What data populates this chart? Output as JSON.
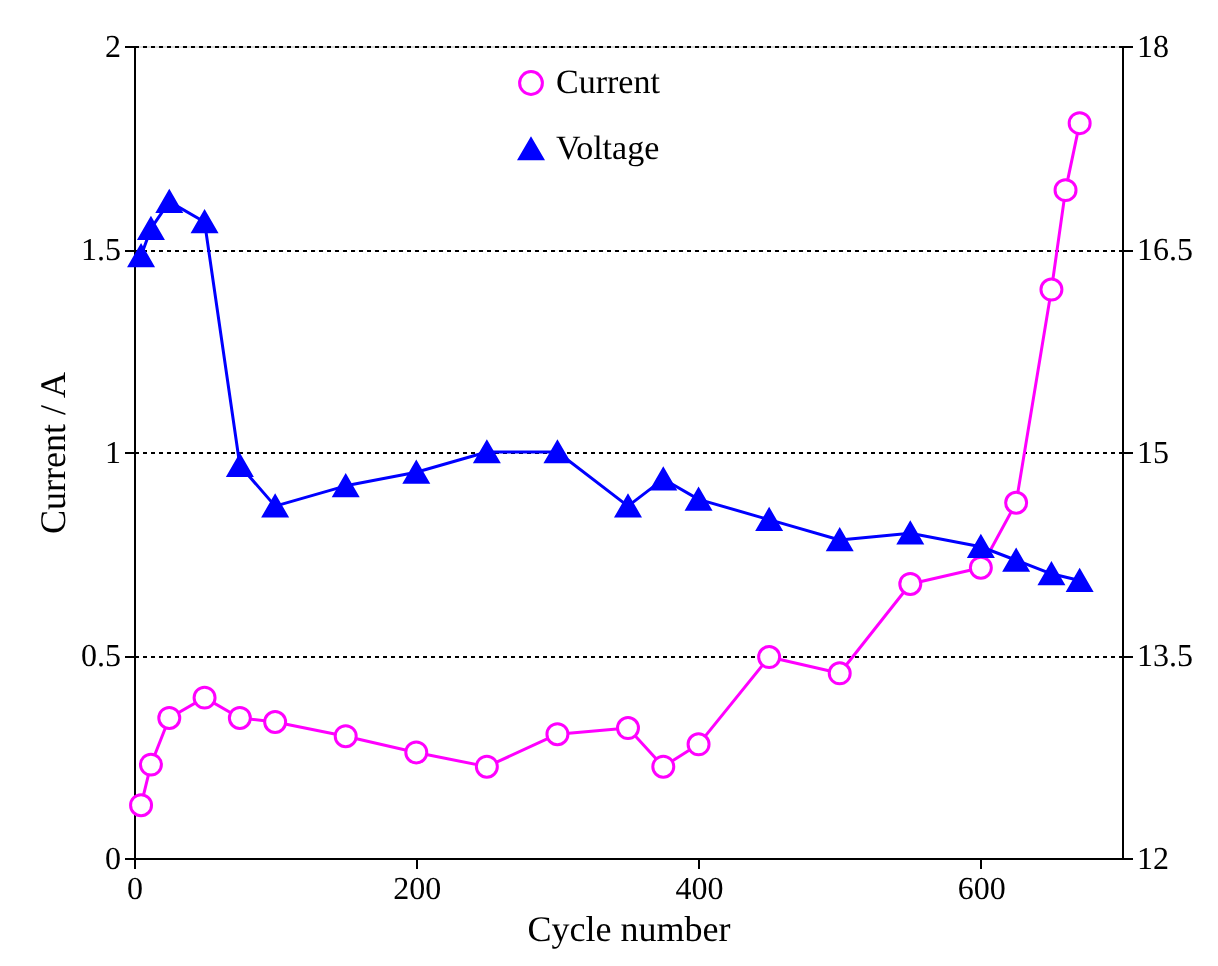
{
  "chart_data": {
    "type": "line",
    "xlabel": "Cycle number",
    "ylabel": "Current / A",
    "xlim": [
      0,
      700
    ],
    "xticks": [
      0,
      200,
      400,
      600
    ],
    "ylim": [
      0,
      2
    ],
    "yticks": [
      0,
      0.5,
      1,
      1.5,
      2
    ],
    "y2lim": [
      12,
      18
    ],
    "y2ticks": [
      12,
      13.5,
      15,
      16.5,
      18
    ],
    "grid": "y",
    "legend": "top",
    "line_style": "solid",
    "series": [
      {
        "name": "Current",
        "color": "#ff00ff",
        "marker": "circle",
        "x": [
          5,
          12,
          25,
          50,
          75,
          100,
          150,
          200,
          250,
          300,
          350,
          375,
          400,
          450,
          500,
          550,
          600,
          625,
          650,
          660,
          670
        ],
        "values": [
          0.13,
          0.23,
          0.345,
          0.395,
          0.345,
          0.335,
          0.3,
          0.26,
          0.225,
          0.305,
          0.32,
          0.225,
          0.28,
          0.495,
          0.455,
          0.675,
          0.715,
          0.875,
          1.4,
          1.645,
          1.81
        ]
      },
      {
        "name": "Voltage",
        "color": "#0000ff",
        "marker": "triangle",
        "axis": "y2",
        "x": [
          5,
          12,
          25,
          50,
          75,
          100,
          150,
          200,
          250,
          300,
          350,
          375,
          400,
          450,
          500,
          550,
          600,
          625,
          650,
          670
        ],
        "values": [
          16.45,
          16.65,
          16.85,
          16.7,
          14.9,
          14.6,
          14.75,
          14.85,
          15.0,
          15.0,
          14.6,
          14.8,
          14.65,
          14.5,
          14.35,
          14.4,
          14.3,
          14.2,
          14.1,
          14.05
        ]
      }
    ]
  }
}
